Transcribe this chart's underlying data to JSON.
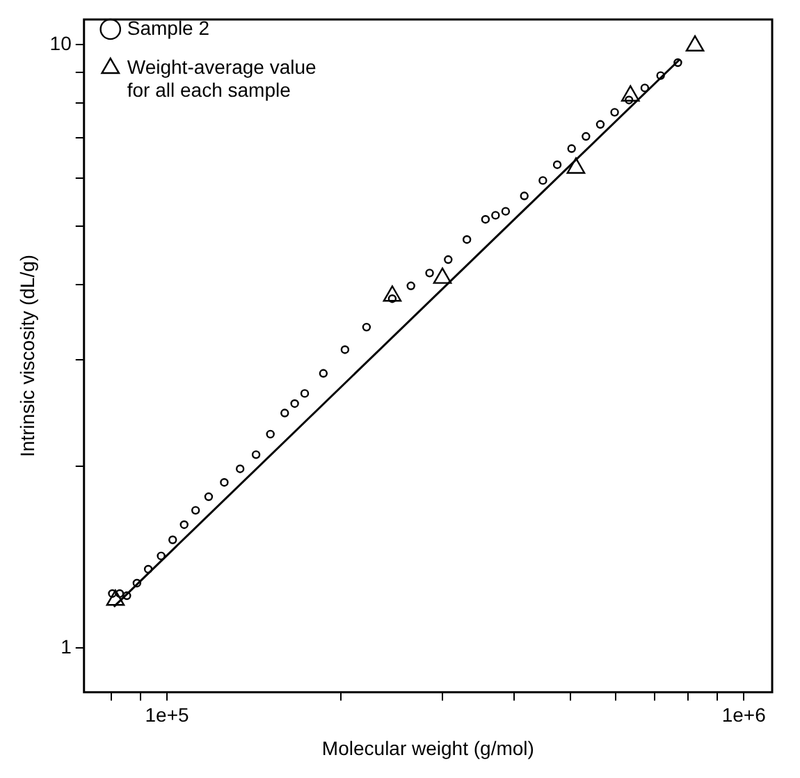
{
  "chart_data": {
    "type": "scatter",
    "xlabel": "Molecular weight (g/mol)",
    "ylabel": "Intrinsic viscosity (dL/g)",
    "log": "xy",
    "grid": false,
    "legend": "top left",
    "xlim": [
      71800,
      1120000
    ],
    "xticks": [
      {
        "value": 80000,
        "label": null
      },
      {
        "value": 90000,
        "label": null
      },
      {
        "value": 100000,
        "label": "1e+5"
      },
      {
        "value": 200000,
        "label": null
      },
      {
        "value": 300000,
        "label": null
      },
      {
        "value": 400000,
        "label": null
      },
      {
        "value": 500000,
        "label": null
      },
      {
        "value": 600000,
        "label": null
      },
      {
        "value": 700000,
        "label": null
      },
      {
        "value": 800000,
        "label": null
      },
      {
        "value": 900000,
        "label": null
      },
      {
        "value": 1000000,
        "label": "1e+6"
      }
    ],
    "ylim": [
      0.844,
      11.0
    ],
    "yticks": [
      1,
      {
        "value": 2,
        "label": null
      },
      {
        "value": 3,
        "label": null
      },
      {
        "value": 4,
        "label": null
      },
      {
        "value": 5,
        "label": null
      },
      {
        "value": 6,
        "label": null
      },
      {
        "value": 7,
        "label": null
      },
      {
        "value": 8,
        "label": null
      },
      {
        "value": 9,
        "label": null
      },
      10
    ],
    "series": [
      {
        "name": "Sample 2",
        "color": "#000000",
        "marker": "circle",
        "x": [
          80400,
          82800,
          85200,
          88700,
          92800,
          97700,
          102300,
          107100,
          112100,
          118100,
          125700,
          133900,
          142700,
          151100,
          160000,
          166500,
          173300,
          186700,
          203500,
          221800,
          245800,
          264800,
          285300,
          307300,
          331100,
          356600,
          371200,
          386500,
          416400,
          448400,
          474900,
          502900,
          532600,
          564000,
          597200,
          632400,
          673600,
          717500,
          768600
        ],
        "values": [
          1.23,
          1.23,
          1.22,
          1.28,
          1.35,
          1.42,
          1.51,
          1.6,
          1.69,
          1.78,
          1.88,
          1.98,
          2.09,
          2.26,
          2.45,
          2.54,
          2.64,
          2.85,
          3.12,
          3.4,
          3.79,
          3.98,
          4.18,
          4.4,
          4.75,
          5.13,
          5.21,
          5.29,
          5.61,
          5.95,
          6.32,
          6.72,
          7.04,
          7.37,
          7.72,
          8.09,
          8.47,
          8.88,
          9.33
        ]
      },
      {
        "name": "Weight-average value for all each sample",
        "color": "#000000",
        "marker": "triangle",
        "x": [
          81400,
          245800,
          300300,
          511700,
          636000,
          823000
        ],
        "values": [
          1.2,
          3.83,
          4.1,
          6.24,
          8.22,
          9.95
        ]
      },
      {
        "type": "line",
        "color": "#000000",
        "marker": "none",
        "x": [
          80900,
          773000
        ],
        "values": [
          1.17,
          9.43
        ]
      }
    ]
  }
}
